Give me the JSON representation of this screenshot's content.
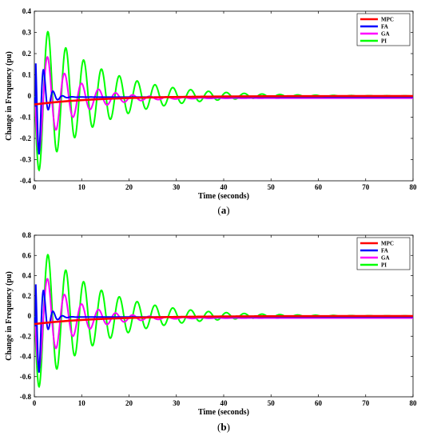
{
  "chart_data": [
    {
      "type": "line",
      "caption": "(a)",
      "caption_letter": "a",
      "xlabel": "Time (seconds)",
      "ylabel": "Change in Frequency (pu)",
      "xlim": [
        0,
        80
      ],
      "ylim": [
        -0.4,
        0.4
      ],
      "xticks": [
        "0",
        "10",
        "20",
        "30",
        "40",
        "50",
        "60",
        "70",
        "80"
      ],
      "yticks": [
        "0.4",
        "0.3",
        "0.2",
        "0.1",
        "0",
        "-0.1",
        "-0.2",
        "-0.3",
        "-0.4"
      ],
      "legend": "top-right",
      "grid": false,
      "series": [
        {
          "name": "MPC",
          "color": "#ff0000",
          "model": {
            "kind": "exp",
            "a0": -0.04,
            "tau": 14
          }
        },
        {
          "name": "FA",
          "color": "#0000ff",
          "model": {
            "kind": "osc",
            "amp": 0.27,
            "start": 0.3,
            "peak_t": 1.0,
            "tau": 1.3,
            "period": 2.0,
            "bias": -0.005
          }
        },
        {
          "name": "GA",
          "color": "#ff00ff",
          "model": {
            "kind": "osc",
            "amp": 0.25,
            "start": 0.3,
            "peak_t": 1.0,
            "tau": 7.0,
            "period": 3.6,
            "bias": -0.01
          }
        },
        {
          "name": "PI",
          "color": "#00ff00",
          "model": {
            "kind": "osc",
            "amp": 0.35,
            "start": 0.2,
            "peak_t": 1.0,
            "tau": 13.0,
            "period": 3.77,
            "bias": 0
          }
        }
      ]
    },
    {
      "type": "line",
      "caption": "(b)",
      "caption_letter": "b",
      "xlabel": "Time (seconds)",
      "ylabel": "Change in Frequency (pu)",
      "xlim": [
        0,
        80
      ],
      "ylim": [
        -0.8,
        0.8
      ],
      "xticks": [
        "0",
        "10",
        "20",
        "30",
        "40",
        "50",
        "60",
        "70",
        "80"
      ],
      "yticks": [
        "0.8",
        "0.6",
        "0.4",
        "0.2",
        "0",
        "-0.2",
        "-0.4",
        "-0.6",
        "-0.8"
      ],
      "legend": "top-right",
      "grid": false,
      "series": [
        {
          "name": "MPC",
          "color": "#ff0000",
          "model": {
            "kind": "exp",
            "a0": -0.08,
            "tau": 14
          }
        },
        {
          "name": "FA",
          "color": "#0000ff",
          "model": {
            "kind": "osc",
            "amp": 0.55,
            "start": 0.3,
            "peak_t": 1.0,
            "tau": 1.3,
            "period": 2.0,
            "bias": -0.01
          }
        },
        {
          "name": "GA",
          "color": "#ff00ff",
          "model": {
            "kind": "osc",
            "amp": 0.5,
            "start": 0.3,
            "peak_t": 1.0,
            "tau": 7.0,
            "period": 3.6,
            "bias": -0.02
          }
        },
        {
          "name": "PI",
          "color": "#00ff00",
          "model": {
            "kind": "osc",
            "amp": 0.7,
            "start": 0.2,
            "peak_t": 1.0,
            "tau": 13.0,
            "period": 3.77,
            "bias": 0
          }
        }
      ]
    }
  ]
}
